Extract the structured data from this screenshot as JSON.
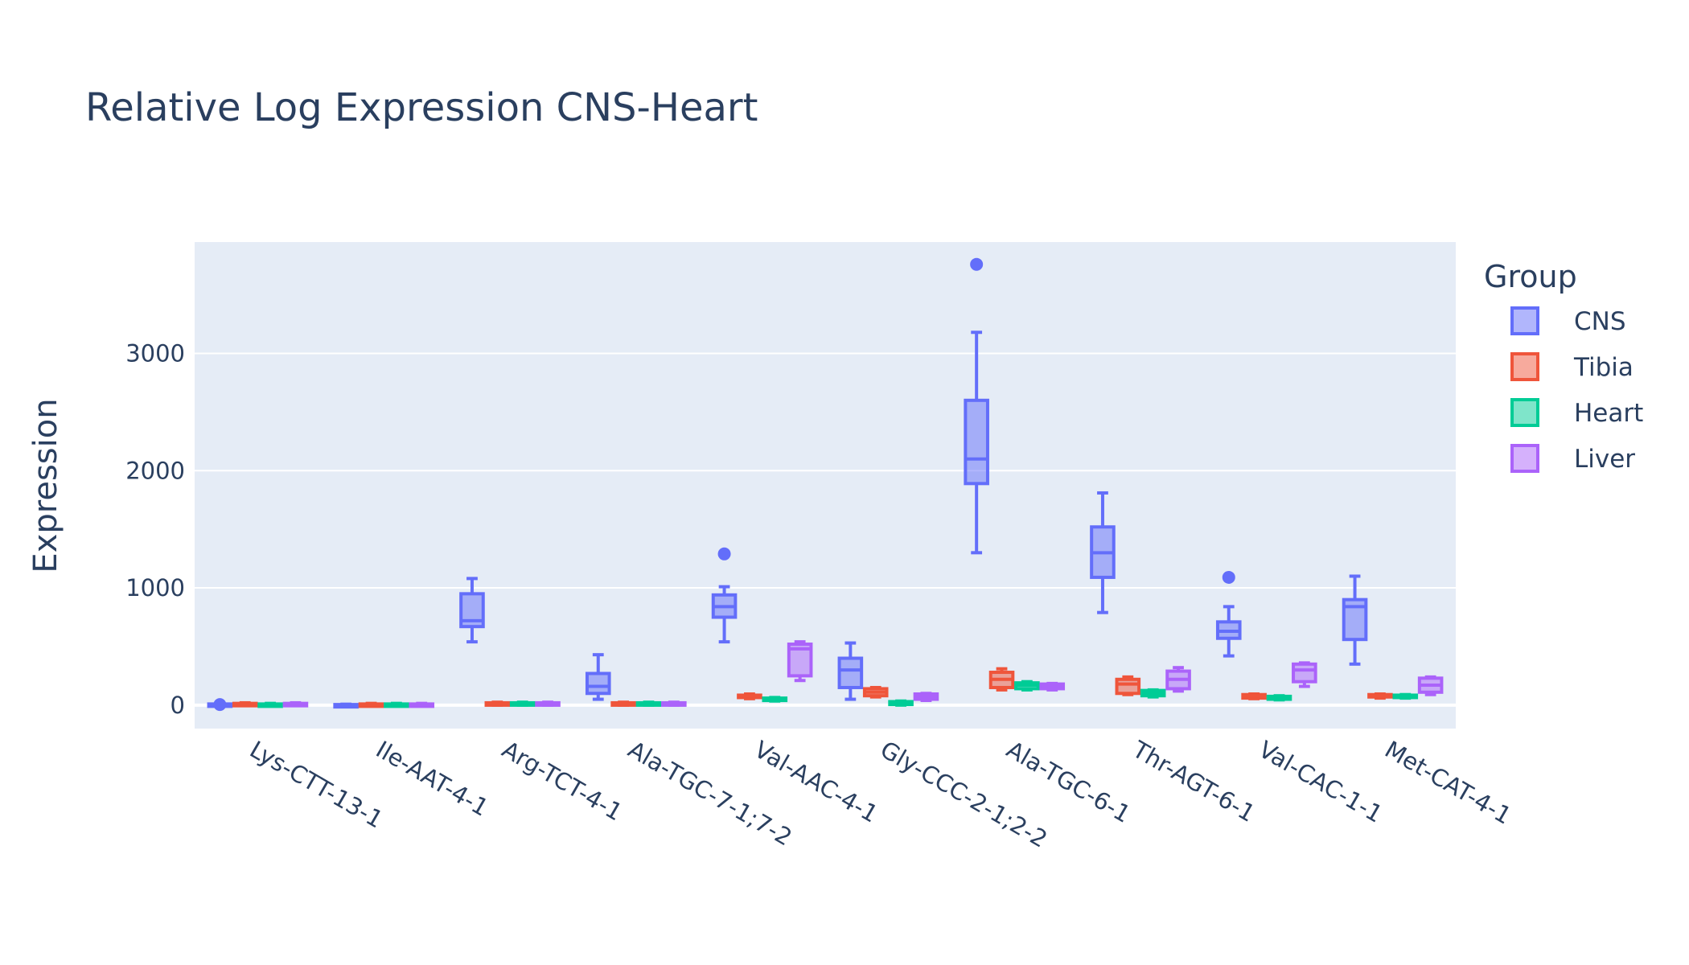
{
  "chart_data": {
    "type": "box",
    "title": "Relative Log Expression CNS-Heart",
    "xlabel": "",
    "ylabel": "Expression",
    "ylim": [
      -200,
      3950
    ],
    "yticks": [
      0,
      1000,
      2000,
      3000
    ],
    "categories": [
      "Lys-CTT-13-1",
      "Ile-AAT-4-1",
      "Arg-TCT-4-1",
      "Ala-TGC-7-1;7-2",
      "Val-AAC-4-1",
      "Gly-CCC-2-1;2-2",
      "Ala-TGC-6-1",
      "Thr-AGT-6-1",
      "Val-CAC-1-1",
      "Met-CAT-4-1"
    ],
    "legend": {
      "title": "Group",
      "placement": "right"
    },
    "grid": true,
    "series": [
      {
        "name": "CNS",
        "color": "#636efa",
        "boxes": [
          {
            "low": 0,
            "q1": 0,
            "median": 5,
            "q3": 10,
            "high": 15,
            "outliers": [
              5
            ]
          },
          {
            "low": 0,
            "q1": 0,
            "median": 2,
            "q3": 5,
            "high": 8,
            "outliers": []
          },
          {
            "low": 540,
            "q1": 670,
            "median": 720,
            "q3": 950,
            "high": 1080,
            "outliers": []
          },
          {
            "low": 50,
            "q1": 100,
            "median": 160,
            "q3": 270,
            "high": 430,
            "outliers": []
          },
          {
            "low": 540,
            "q1": 750,
            "median": 840,
            "q3": 940,
            "high": 1010,
            "outliers": [
              1290
            ]
          },
          {
            "low": 50,
            "q1": 150,
            "median": 300,
            "q3": 400,
            "high": 530,
            "outliers": []
          },
          {
            "low": 1300,
            "q1": 1890,
            "median": 2100,
            "q3": 2600,
            "high": 3180,
            "outliers": [
              3760
            ]
          },
          {
            "low": 790,
            "q1": 1090,
            "median": 1300,
            "q3": 1520,
            "high": 1810,
            "outliers": []
          },
          {
            "low": 420,
            "q1": 570,
            "median": 630,
            "q3": 710,
            "high": 840,
            "outliers": [
              1090
            ]
          },
          {
            "low": 350,
            "q1": 560,
            "median": 840,
            "q3": 900,
            "high": 1100,
            "outliers": []
          }
        ]
      },
      {
        "name": "Tibia",
        "color": "#ef553b",
        "boxes": [
          {
            "low": 0,
            "q1": 0,
            "median": 5,
            "q3": 15,
            "high": 20,
            "outliers": []
          },
          {
            "low": 0,
            "q1": 0,
            "median": 3,
            "q3": 10,
            "high": 15,
            "outliers": []
          },
          {
            "low": 0,
            "q1": 5,
            "median": 10,
            "q3": 20,
            "high": 25,
            "outliers": []
          },
          {
            "low": 0,
            "q1": 5,
            "median": 10,
            "q3": 20,
            "high": 25,
            "outliers": []
          },
          {
            "low": 55,
            "q1": 65,
            "median": 75,
            "q3": 85,
            "high": 95,
            "outliers": []
          },
          {
            "low": 70,
            "q1": 80,
            "median": 110,
            "q3": 140,
            "high": 150,
            "outliers": []
          },
          {
            "low": 130,
            "q1": 150,
            "median": 220,
            "q3": 280,
            "high": 310,
            "outliers": []
          },
          {
            "low": 90,
            "q1": 100,
            "median": 180,
            "q3": 220,
            "high": 240,
            "outliers": []
          },
          {
            "low": 55,
            "q1": 60,
            "median": 75,
            "q3": 90,
            "high": 95,
            "outliers": []
          },
          {
            "low": 60,
            "q1": 70,
            "median": 80,
            "q3": 90,
            "high": 95,
            "outliers": []
          }
        ]
      },
      {
        "name": "Heart",
        "color": "#00cc96",
        "boxes": [
          {
            "low": 0,
            "q1": 0,
            "median": 5,
            "q3": 10,
            "high": 15,
            "outliers": []
          },
          {
            "low": 0,
            "q1": 0,
            "median": 3,
            "q3": 10,
            "high": 15,
            "outliers": []
          },
          {
            "low": 0,
            "q1": 5,
            "median": 10,
            "q3": 20,
            "high": 25,
            "outliers": []
          },
          {
            "low": 0,
            "q1": 5,
            "median": 10,
            "q3": 20,
            "high": 25,
            "outliers": []
          },
          {
            "low": 35,
            "q1": 40,
            "median": 50,
            "q3": 60,
            "high": 65,
            "outliers": []
          },
          {
            "low": 0,
            "q1": 5,
            "median": 15,
            "q3": 30,
            "high": 35,
            "outliers": []
          },
          {
            "low": 130,
            "q1": 140,
            "median": 170,
            "q3": 190,
            "high": 200,
            "outliers": []
          },
          {
            "low": 70,
            "q1": 80,
            "median": 100,
            "q3": 125,
            "high": 130,
            "outliers": []
          },
          {
            "low": 45,
            "q1": 50,
            "median": 60,
            "q3": 75,
            "high": 80,
            "outliers": []
          },
          {
            "low": 60,
            "q1": 65,
            "median": 75,
            "q3": 85,
            "high": 90,
            "outliers": []
          }
        ]
      },
      {
        "name": "Liver",
        "color": "#ab63fa",
        "boxes": [
          {
            "low": 0,
            "q1": 0,
            "median": 5,
            "q3": 15,
            "high": 20,
            "outliers": []
          },
          {
            "low": 0,
            "q1": 0,
            "median": 3,
            "q3": 10,
            "high": 15,
            "outliers": []
          },
          {
            "low": 0,
            "q1": 5,
            "median": 10,
            "q3": 20,
            "high": 25,
            "outliers": []
          },
          {
            "low": 0,
            "q1": 5,
            "median": 10,
            "q3": 20,
            "high": 25,
            "outliers": []
          },
          {
            "low": 210,
            "q1": 250,
            "median": 480,
            "q3": 520,
            "high": 540,
            "outliers": []
          },
          {
            "low": 40,
            "q1": 50,
            "median": 70,
            "q3": 95,
            "high": 100,
            "outliers": []
          },
          {
            "low": 130,
            "q1": 140,
            "median": 160,
            "q3": 180,
            "high": 185,
            "outliers": []
          },
          {
            "low": 120,
            "q1": 140,
            "median": 220,
            "q3": 290,
            "high": 320,
            "outliers": []
          },
          {
            "low": 160,
            "q1": 200,
            "median": 300,
            "q3": 350,
            "high": 360,
            "outliers": []
          },
          {
            "low": 90,
            "q1": 110,
            "median": 170,
            "q3": 230,
            "high": 240,
            "outliers": []
          }
        ]
      }
    ]
  }
}
